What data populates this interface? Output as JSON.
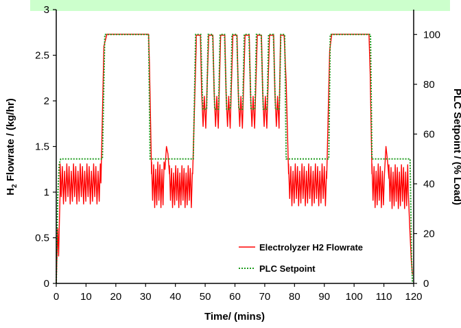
{
  "chart_data": {
    "type": "line",
    "xlabel": "Time/ (mins)",
    "ylabel_left_base": "H",
    "ylabel_left_sub": "2",
    "ylabel_left_rest": " Flowrate / (kg/hr)",
    "ylabel_right": "PLC Setpoint / (% Load)",
    "xlim": [
      0,
      120
    ],
    "ylim_left": [
      0,
      3
    ],
    "ylim_right": [
      0,
      110
    ],
    "x_ticks": [
      "0",
      "10",
      "20",
      "30",
      "40",
      "50",
      "60",
      "70",
      "80",
      "90",
      "100",
      "110",
      "120"
    ],
    "y_left_ticks": [
      "0",
      "0.5",
      "1",
      "1.5",
      "2",
      "2.5",
      "3"
    ],
    "y_right_ticks": [
      "0",
      "20",
      "40",
      "60",
      "80",
      "100"
    ],
    "colors": {
      "flowrate": "#ff0000",
      "setpoint": "#1a9a1a",
      "header_band": "#ccffcc"
    },
    "series": [
      {
        "name": "Electrolyzer H2 Flowrate",
        "axis": "left",
        "style": "solid",
        "segments": [
          {
            "kind": "points",
            "x": [
              0,
              0.5,
              0.8,
              1.0,
              1.3
            ],
            "y": [
              0,
              0.6,
              0.3,
              0.6,
              1.0
            ]
          },
          {
            "kind": "osc",
            "x0": 1.3,
            "x1": 15,
            "center": 1.09,
            "amp": 0.17,
            "period": 0.75
          },
          {
            "kind": "points",
            "x": [
              15,
              16,
              17,
              31,
              31.3,
              32
            ],
            "y": [
              1.1,
              2.6,
              2.73,
              2.73,
              2.4,
              1.2
            ]
          },
          {
            "kind": "osc",
            "x0": 32,
            "x1": 36.3,
            "center": 1.08,
            "amp": 0.2,
            "period": 0.7
          },
          {
            "kind": "points",
            "x": [
              36.5,
              37,
              37.5,
              38
            ],
            "y": [
              1.25,
              1.5,
              1.42,
              1.2
            ]
          },
          {
            "kind": "osc",
            "x0": 38,
            "x1": 45.8,
            "center": 1.06,
            "amp": 0.18,
            "period": 0.7
          },
          {
            "kind": "points",
            "x": [
              45.8,
              47
            ],
            "y": [
              1.2,
              2.62
            ]
          },
          {
            "kind": "points",
            "x": [
              47,
              48.4,
              48.8,
              49.3,
              49.7,
              50.2,
              51.2,
              52.6,
              53.0,
              53.5,
              53.9,
              54.4,
              55.2,
              56.6,
              57.0,
              57.5,
              57.9,
              58.4,
              59.3,
              60.7,
              61.1,
              61.6,
              62.0,
              62.5,
              63.4,
              64.8,
              65.2,
              65.7,
              66.1,
              66.6,
              67.5,
              68.9,
              69.3,
              69.8,
              70.2,
              70.7,
              71.6,
              73.0,
              73.4,
              73.9,
              74.3,
              74.8,
              75.3
            ],
            "y": [
              2.72,
              2.72,
              2.1,
              1.72,
              2.05,
              1.7,
              2.72,
              2.72,
              2.1,
              1.72,
              2.05,
              1.7,
              2.72,
              2.72,
              2.1,
              1.72,
              2.05,
              1.7,
              2.72,
              2.72,
              2.1,
              1.72,
              2.05,
              1.7,
              2.72,
              2.72,
              2.1,
              1.72,
              2.05,
              1.7,
              2.72,
              2.72,
              2.1,
              1.72,
              2.05,
              1.7,
              2.72,
              2.72,
              2.1,
              1.72,
              2.05,
              1.7,
              2.72
            ]
          },
          {
            "kind": "points",
            "x": [
              75.3,
              76.5,
              77.2,
              78
            ],
            "y": [
              2.72,
              2.72,
              2.2,
              1.2
            ]
          },
          {
            "kind": "osc",
            "x0": 78,
            "x1": 90.8,
            "center": 1.08,
            "amp": 0.18,
            "period": 0.75
          },
          {
            "kind": "points",
            "x": [
              90.8,
              91.8,
              92.5,
              105,
              105.4,
              106
            ],
            "y": [
              1.15,
              2.55,
              2.73,
              2.73,
              2.3,
              1.2
            ]
          },
          {
            "kind": "osc",
            "x0": 106,
            "x1": 110,
            "center": 1.07,
            "amp": 0.19,
            "period": 0.7
          },
          {
            "kind": "points",
            "x": [
              110.2,
              110.7,
              111.2,
              111.7
            ],
            "y": [
              1.2,
              1.5,
              1.35,
              1.15
            ]
          },
          {
            "kind": "osc",
            "x0": 111.7,
            "x1": 118.2,
            "center": 1.06,
            "amp": 0.19,
            "period": 0.7
          },
          {
            "kind": "points",
            "x": [
              118.2,
              118.7,
              119.2,
              119.6
            ],
            "y": [
              1.0,
              0.6,
              0.25,
              0.1
            ]
          }
        ]
      },
      {
        "name": "PLC Setpoint",
        "axis": "right",
        "style": "dotted",
        "x": [
          0,
          0.5,
          1,
          1.5,
          15.5,
          16.3,
          31,
          31.5,
          46,
          46.8,
          48.5,
          49.2,
          50.5,
          51,
          52.5,
          53.2,
          54.5,
          55,
          56.5,
          57.2,
          58.5,
          59,
          60.6,
          61.3,
          62.6,
          63.1,
          64.7,
          65.4,
          66.7,
          67.2,
          68.8,
          69.5,
          70.8,
          71.3,
          72.9,
          73.6,
          74.9,
          75.4,
          76.7,
          77.2,
          91.5,
          92,
          105.5,
          106,
          118.8,
          119.3,
          119.6
        ],
        "y": [
          0,
          35,
          48,
          50,
          50,
          100,
          100,
          50,
          50,
          100,
          100,
          70,
          70,
          100,
          100,
          70,
          70,
          100,
          100,
          70,
          70,
          100,
          100,
          70,
          70,
          100,
          100,
          70,
          70,
          100,
          100,
          70,
          70,
          100,
          100,
          70,
          70,
          100,
          100,
          50,
          50,
          100,
          100,
          50,
          50,
          10,
          0
        ]
      }
    ],
    "legend": {
      "position": "lower-right",
      "entries": [
        "Electrolyzer H2 Flowrate",
        "PLC Setpoint"
      ]
    },
    "grid": false
  }
}
